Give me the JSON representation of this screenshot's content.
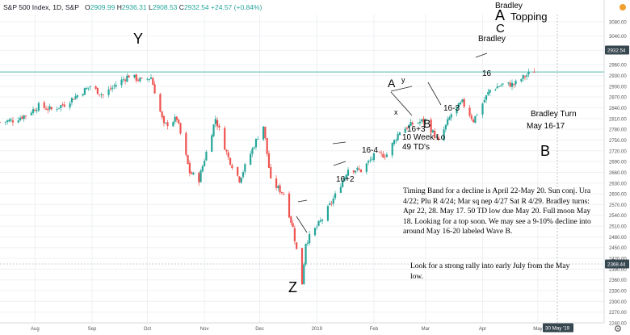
{
  "header": {
    "symbol": "S&P 500 Index, 1D, S&P",
    "open_label": "O",
    "open": "2909.99",
    "high_label": "H",
    "high": "2936.31",
    "low_label": "L",
    "low": "2908.53",
    "close_label": "C",
    "close": "2932.54",
    "change": "+24.57 (+0.84%)"
  },
  "price_tags": {
    "last": "2932.54",
    "cursor": "2368.44",
    "date": "30 May '19"
  },
  "colors": {
    "up": "#26a69a",
    "down": "#ef5350",
    "hline": "#4db6ac",
    "grid": "#eef0f3",
    "axis_text": "#555555"
  },
  "icons": [
    "settings-gear-icon",
    "alert-dot-icon"
  ],
  "chart_data": {
    "type": "candlestick",
    "ylim": [
      2240,
      3100
    ],
    "yticks": [
      2240,
      2270,
      2300,
      2330,
      2360,
      2390,
      2420,
      2450,
      2480,
      2510,
      2540,
      2570,
      2600,
      2630,
      2660,
      2690,
      2720,
      2750,
      2780,
      2810,
      2840,
      2870,
      2900,
      2930,
      2960,
      3000,
      3040,
      3080
    ],
    "x_ticks": [
      {
        "label": "Aug",
        "date": "2018-08-01"
      },
      {
        "label": "Sep",
        "date": "2018-09-01"
      },
      {
        "label": "Oct",
        "date": "2018-10-01"
      },
      {
        "label": "Nov",
        "date": "2018-11-01"
      },
      {
        "label": "Dec",
        "date": "2018-12-01"
      },
      {
        "label": "2019",
        "date": "2019-01-01"
      },
      {
        "label": "Feb",
        "date": "2019-02-01"
      },
      {
        "label": "Mar",
        "date": "2019-03-01"
      },
      {
        "label": "Apr",
        "date": "2019-04-01"
      },
      {
        "label": "May",
        "date": "2019-05-01"
      }
    ],
    "xlim": [
      "2018-07-13",
      "2019-06-06"
    ],
    "horizontal_line": 2940,
    "series_path": [
      {
        "date": "2018-07-13",
        "close": 2800
      },
      {
        "date": "2018-07-20",
        "close": 2805
      },
      {
        "date": "2018-07-27",
        "close": 2820
      },
      {
        "date": "2018-08-03",
        "close": 2845
      },
      {
        "date": "2018-08-10",
        "close": 2835
      },
      {
        "date": "2018-08-17",
        "close": 2850
      },
      {
        "date": "2018-08-24",
        "close": 2875
      },
      {
        "date": "2018-08-31",
        "close": 2900
      },
      {
        "date": "2018-09-07",
        "close": 2875
      },
      {
        "date": "2018-09-14",
        "close": 2905
      },
      {
        "date": "2018-09-21",
        "close": 2930
      },
      {
        "date": "2018-09-28",
        "close": 2915
      },
      {
        "date": "2018-10-03",
        "close": 2925
      },
      {
        "date": "2018-10-10",
        "close": 2790
      },
      {
        "date": "2018-10-17",
        "close": 2810
      },
      {
        "date": "2018-10-24",
        "close": 2660
      },
      {
        "date": "2018-10-29",
        "close": 2640
      },
      {
        "date": "2018-11-07",
        "close": 2810
      },
      {
        "date": "2018-11-14",
        "close": 2700
      },
      {
        "date": "2018-11-20",
        "close": 2640
      },
      {
        "date": "2018-11-30",
        "close": 2760
      },
      {
        "date": "2018-12-03",
        "close": 2790
      },
      {
        "date": "2018-12-07",
        "close": 2635
      },
      {
        "date": "2018-12-14",
        "close": 2600
      },
      {
        "date": "2018-12-19",
        "close": 2505
      },
      {
        "date": "2018-12-24",
        "close": 2351
      },
      {
        "date": "2018-12-26",
        "close": 2465
      },
      {
        "date": "2019-01-04",
        "close": 2530
      },
      {
        "date": "2019-01-11",
        "close": 2595
      },
      {
        "date": "2019-01-18",
        "close": 2670
      },
      {
        "date": "2019-01-25",
        "close": 2665
      },
      {
        "date": "2019-02-01",
        "close": 2705
      },
      {
        "date": "2019-02-08",
        "close": 2710
      },
      {
        "date": "2019-02-15",
        "close": 2775
      },
      {
        "date": "2019-02-22",
        "close": 2795
      },
      {
        "date": "2019-03-01",
        "close": 2805
      },
      {
        "date": "2019-03-08",
        "close": 2745
      },
      {
        "date": "2019-03-15",
        "close": 2822
      },
      {
        "date": "2019-03-21",
        "close": 2855
      },
      {
        "date": "2019-03-27",
        "close": 2805
      },
      {
        "date": "2019-04-05",
        "close": 2890
      },
      {
        "date": "2019-04-12",
        "close": 2905
      },
      {
        "date": "2019-04-18",
        "close": 2905
      },
      {
        "date": "2019-04-24",
        "close": 2928
      },
      {
        "date": "2019-04-29",
        "close": 2943
      }
    ]
  },
  "annotations": {
    "y": "Y",
    "z": "Z",
    "a_small": "A",
    "y_small": "y",
    "x_small": "x",
    "b_small": "B",
    "big_a": "A",
    "big_c": "C",
    "bradley_top": "Bradley",
    "topping": "Topping",
    "bradley_mid": "Bradley",
    "sixteen": "16",
    "sixteen_three": "16-3",
    "sixteen_plus_three": "16+3",
    "ten_week": "10 Week Lo",
    "forty_nine": "49 TD's",
    "sixteen_four": "16-4",
    "sixteen_plus_two": "16+2",
    "bradley_turn": "Bradley Turn",
    "may_16_17": "May 16-17",
    "b_big": "B",
    "timing_note": "Timing Band for a decline is April 22-May 20.  Sun conj. Ura 4/22; Plu R 4/24; Mar sq nep 4/27 Sat R 4/29. Bradley turns: Apr 22, 28.  May 17. 50 TD low due May 20. Full moon May 18. Looking for a top soon.  We may see a 9-10% decline into around May 16-20 labeled Wave B.",
    "rally_note": "Look for a strong rally into early July from the May low."
  }
}
